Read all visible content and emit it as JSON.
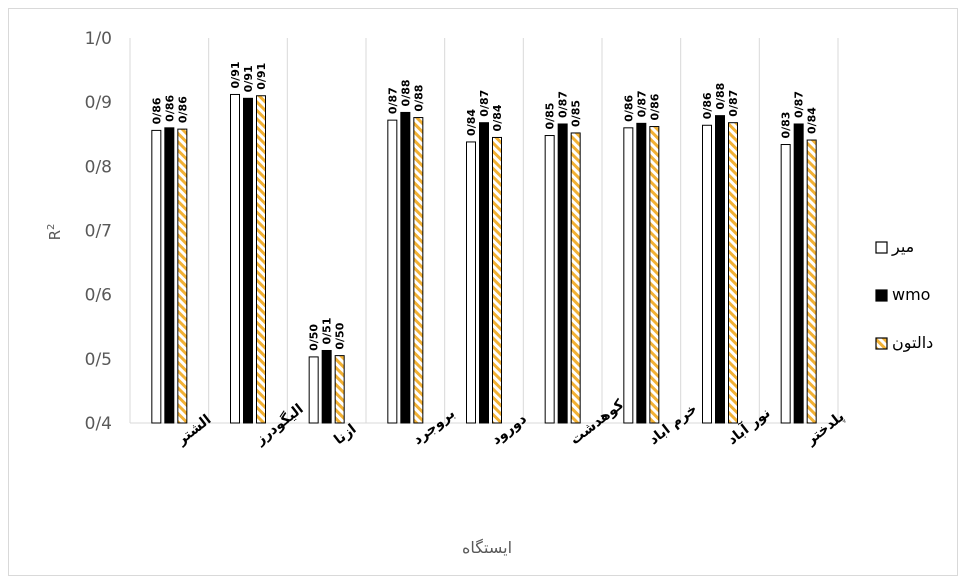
{
  "chart_data": {
    "type": "bar",
    "title": "",
    "xlabel": "ایستگاه",
    "ylabel": "R²",
    "ylim": [
      0.4,
      1.0
    ],
    "yticks": [
      "0/4",
      "0/5",
      "0/6",
      "0/7",
      "0/8",
      "0/9",
      "1/0"
    ],
    "ytick_values": [
      0.4,
      0.5,
      0.6,
      0.7,
      0.8,
      0.9,
      1.0
    ],
    "grid": false,
    "legend_position": "right",
    "categories": [
      "الشتر",
      "الیگودرز",
      "ازنا",
      "بروجرد",
      "دورود",
      "کوهدشت",
      "خرم اباد",
      "نور آباد",
      "پلدختر"
    ],
    "series": [
      {
        "name": "میر",
        "values": [
          0.856,
          0.912,
          0.503,
          0.872,
          0.838,
          0.848,
          0.86,
          0.864,
          0.834
        ],
        "labels": [
          "0/86",
          "0/91",
          "0/50",
          "0/87",
          "0/84",
          "0/85",
          "0/86",
          "0/86",
          "0/83"
        ],
        "style": "hollow",
        "color": "#000000"
      },
      {
        "name": "wmo",
        "values": [
          0.86,
          0.906,
          0.513,
          0.884,
          0.868,
          0.866,
          0.867,
          0.879,
          0.866
        ],
        "labels": [
          "0/86",
          "0/91",
          "0/51",
          "0/88",
          "0/87",
          "0/87",
          "0/87",
          "0/88",
          "0/87"
        ],
        "style": "solid",
        "color": "#000000"
      },
      {
        "name": "دالتون",
        "values": [
          0.858,
          0.91,
          0.505,
          0.876,
          0.845,
          0.852,
          0.862,
          0.868,
          0.841
        ],
        "labels": [
          "0/86",
          "0/91",
          "0/50",
          "0/88",
          "0/84",
          "0/85",
          "0/86",
          "0/87",
          "0/84"
        ],
        "style": "hatched",
        "color": "#f2b134"
      }
    ]
  }
}
